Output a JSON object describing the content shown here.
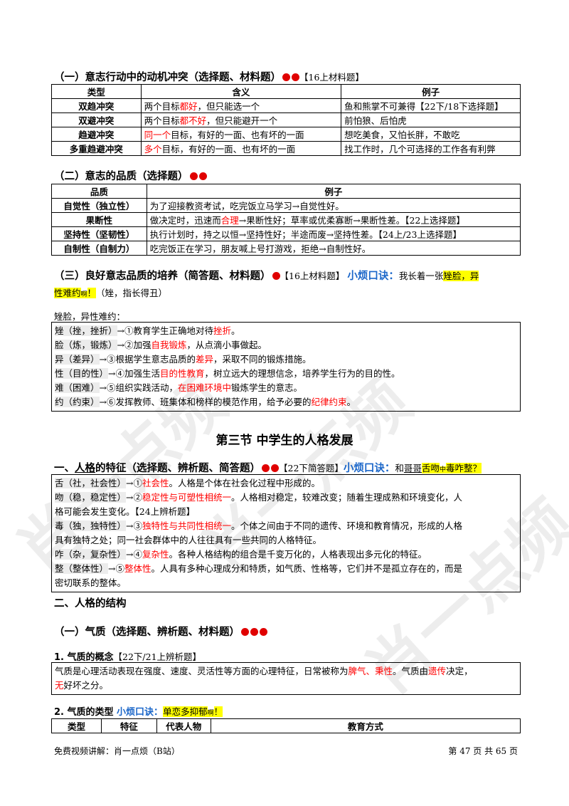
{
  "watermark": "肖一点频",
  "s1": {
    "title": "（一）意志行动中的动机冲突（选择题、材料题）",
    "tag": "【16上材料题】",
    "headers": [
      "类型",
      "含义",
      "例子"
    ],
    "rows": [
      {
        "type": "双趋冲突",
        "m_pre": "两个目标",
        "m_red": "都好",
        "m_post": "，但只能选一个",
        "ex": "鱼和熊掌不可兼得【22下/18下选择题】"
      },
      {
        "type": "双避冲突",
        "m_pre": "两个目标",
        "m_red": "都不好",
        "m_post": "，但只能避开一个",
        "ex": "前怕狼、后怕虎"
      },
      {
        "type": "趋避冲突",
        "m_pre": "",
        "m_red": "同一个",
        "m_post": "目标，有好的一面、也有坏的一面",
        "ex": "想吃美食，又怕长胖，不敢吃"
      },
      {
        "type": "多重趋避冲突",
        "m_pre": "",
        "m_red": "多个",
        "m_post": "目标，有好的一面、也有坏的一面",
        "ex": "找工作时，几个可选择的工作各有利弊"
      }
    ]
  },
  "s2": {
    "title": "（二）意志的品质（选择题）",
    "headers": [
      "品质",
      "例子"
    ],
    "rows": [
      {
        "q": "自觉性（独立性）",
        "ex_pre": "为了迎接教资考试，吃完饭立马学习→自觉性好。",
        "ex_red": "",
        "ex_post": ""
      },
      {
        "q": "果断性",
        "ex_pre": "做决定时，迅速而",
        "ex_red": "合理",
        "ex_post": "→果断性好；草率或优柔寡断→果断性差。【22上选择题】"
      },
      {
        "q": "坚持性（坚韧性）",
        "ex_pre": "执行计划时，持之以恒→坚持性好；半途而废→坚持性差。【24上/23上选择题】",
        "ex_red": "",
        "ex_post": ""
      },
      {
        "q": "自制性（自制力）",
        "ex_pre": "吃完饭正在学习，朋友喊上号打游戏，拒绝→自制性好。",
        "ex_red": "",
        "ex_post": ""
      }
    ]
  },
  "s3": {
    "title": "（三）良好意志品质的培养（简答题、材料题）",
    "tag": "【16上材料题】",
    "mnemonic_label": "小烦口诀：",
    "mnemonic_pre": "我长着一张",
    "mnemonic_hl1": "矬脸，异",
    "mnemonic_hl2": "性难约",
    "mnemonic_small": "啊",
    "mnemonic_hl3": "！",
    "note": "（矬，指长得丑）",
    "sub": "矬脸，异性难约：",
    "rows": [
      {
        "key": "矬（挫，挫折）",
        "pre": "→①教育学生正确地对待",
        "red": "挫折",
        "post": "。"
      },
      {
        "key": "脸（炼，锻炼）",
        "pre": "→②加强",
        "red": "自我锻炼",
        "post": "，从点滴小事做起。"
      },
      {
        "key": "异（差异）",
        "pre": "→③根据学生意志品质的",
        "red": "差异",
        "post": "，采取不同的锻炼措施。"
      },
      {
        "key": "性（目的性）",
        "pre": "→④加强生活",
        "red": "目的性教育",
        "post": "，树立远大的理想信念，培养学生行为的目的性。"
      },
      {
        "key": "难（困难）",
        "pre": "→⑤组织实践活动，",
        "red": "在困难环境中",
        "post": "锻炼学生的意志。"
      },
      {
        "key": "约（约束）",
        "pre": "→⑥发挥教师、班集体和榜样的模范作用，给予必要的",
        "red": "纪律约束",
        "post": "。"
      }
    ]
  },
  "section3_title": "第三节  中学生的人格发展",
  "s4": {
    "title_pre": "一、",
    "title_ul": "人格",
    "title_post": "的特征（选择题、辨析题、简答题）",
    "tag": "【22下简答题】",
    "mnemonic_label": "小烦口诀：",
    "mnemonic_pre": "和",
    "mnemonic_ul": "哥哥",
    "mnemonic_hl1": "舌吻",
    "mnemonic_small": "中",
    "mnemonic_hl2": "毒咋整？",
    "items": [
      {
        "lines": [
          {
            "key": "舌（社，社会性）",
            "pre": "→①",
            "red": "社会性",
            "post": "。人格是个体在社会化过程中形成的。"
          }
        ]
      },
      {
        "lines": [
          {
            "key": "吻（稳，稳定性）",
            "pre": "→②",
            "red": "稳定性与可塑性相统一",
            "post": "。人格相对稳定，较难改变；随着生理成熟和环境变化，人"
          },
          {
            "key": "",
            "pre": "格可能会发生变化。【24上辨析题】",
            "red": "",
            "post": ""
          }
        ]
      },
      {
        "lines": [
          {
            "key": "毒（独，独特性）",
            "pre": "→③",
            "red": "独特性与共同性相统一",
            "post": "。个体之间由于不同的遗传、环境和教育情况，形成的人格"
          },
          {
            "key": "",
            "pre": "具有独特之处；同一社会群体中的人往往具有一些共同的人格特征。",
            "red": "",
            "post": ""
          }
        ]
      },
      {
        "lines": [
          {
            "key": "咋（杂，复杂性）",
            "pre": "→④",
            "red": "复杂性",
            "post": "。各种人格结构的组合是千变万化的，人格表现出多元化的特征。"
          }
        ]
      },
      {
        "lines": [
          {
            "key": "整（整体性）",
            "pre": "→⑤",
            "red": "整体性",
            "post": "。人具有多种心理成分和特质，如气质、性格等，它们并不是孤立存在的，而是"
          },
          {
            "key": "",
            "pre": "密切联系的整体。",
            "red": "",
            "post": ""
          }
        ]
      }
    ]
  },
  "s5": {
    "title": "二、人格的结构"
  },
  "s6": {
    "title": "（一）气质（选择题、辨析题、材料题）"
  },
  "s7": {
    "title": "1. 气质的概念",
    "tag": "【22下/21上辨析题】",
    "l1_pre": "气质是心理活动表现在强度、速度、灵活性等方面的心理特征，日常被称为",
    "l1_red1": "脾气、秉性",
    "l1_mid": "。气质由",
    "l1_red2": "遗传",
    "l1_post": "决定，",
    "l2_red": "无",
    "l2_post": "好坏之分。"
  },
  "s8": {
    "title": "2. 气质的类型",
    "mnemonic_label": "小烦口诀：",
    "mnemonic_hl1": "单恋多抑郁",
    "mnemonic_small": "啊",
    "mnemonic_hl2": "！",
    "headers": [
      "类型",
      "特征",
      "代表人物",
      "教育方式"
    ]
  },
  "footer": {
    "left": "免费视频讲解：肖一点烦（B站）",
    "right": "第 47 页 共 65 页"
  }
}
